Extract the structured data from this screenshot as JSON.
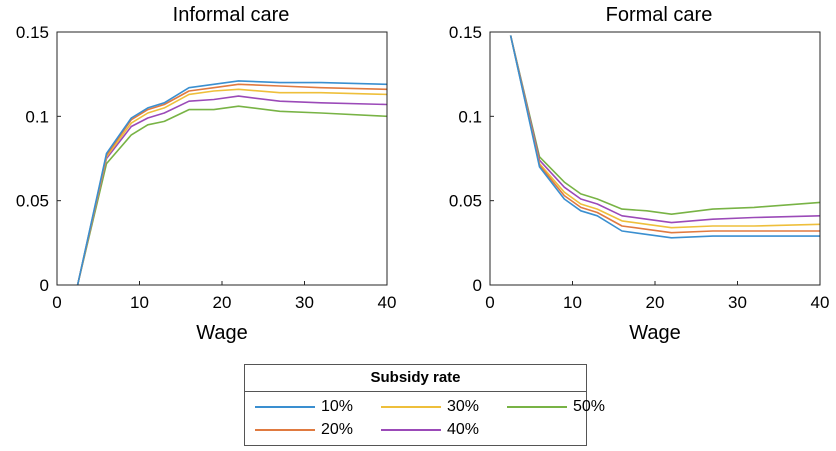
{
  "chart_data": [
    {
      "type": "line",
      "title": "Informal care",
      "xlabel": "Wage",
      "ylabel": "",
      "xlim": [
        0,
        40
      ],
      "ylim": [
        0,
        0.15
      ],
      "xticks": [
        "0",
        "10",
        "20",
        "30",
        "40"
      ],
      "yticks": [
        "0",
        "0.05",
        "0.1",
        "0.15"
      ],
      "x": [
        2.5,
        6,
        9,
        11,
        13,
        16,
        19,
        22,
        27,
        32,
        40
      ],
      "series": [
        {
          "name": "10%",
          "color": "#3a8fd0",
          "values": [
            0,
            0.078,
            0.099,
            0.105,
            0.108,
            0.117,
            0.119,
            0.121,
            0.12,
            0.12,
            0.119
          ]
        },
        {
          "name": "20%",
          "color": "#e07a40",
          "values": [
            0,
            0.077,
            0.098,
            0.104,
            0.107,
            0.115,
            0.117,
            0.119,
            0.118,
            0.117,
            0.116
          ]
        },
        {
          "name": "30%",
          "color": "#eebf3b",
          "values": [
            0,
            0.076,
            0.096,
            0.102,
            0.105,
            0.113,
            0.115,
            0.116,
            0.114,
            0.114,
            0.113
          ]
        },
        {
          "name": "40%",
          "color": "#9b4ab8",
          "values": [
            0,
            0.075,
            0.094,
            0.099,
            0.102,
            0.109,
            0.11,
            0.112,
            0.109,
            0.108,
            0.107
          ]
        },
        {
          "name": "50%",
          "color": "#78b345",
          "values": [
            0,
            0.072,
            0.089,
            0.095,
            0.097,
            0.104,
            0.104,
            0.106,
            0.103,
            0.102,
            0.1
          ]
        }
      ]
    },
    {
      "type": "line",
      "title": "Formal care",
      "xlabel": "Wage",
      "ylabel": "",
      "xlim": [
        0,
        40
      ],
      "ylim": [
        0,
        0.15
      ],
      "xticks": [
        "0",
        "10",
        "20",
        "30",
        "40"
      ],
      "yticks": [
        "0",
        "0.05",
        "0.1",
        "0.15"
      ],
      "x": [
        2.5,
        6,
        9,
        11,
        13,
        16,
        19,
        22,
        27,
        32,
        40
      ],
      "series": [
        {
          "name": "10%",
          "color": "#3a8fd0",
          "values": [
            0.148,
            0.07,
            0.051,
            0.044,
            0.041,
            0.032,
            0.03,
            0.028,
            0.029,
            0.029,
            0.029
          ]
        },
        {
          "name": "20%",
          "color": "#e07a40",
          "values": [
            0.148,
            0.071,
            0.053,
            0.046,
            0.043,
            0.035,
            0.033,
            0.031,
            0.032,
            0.032,
            0.032
          ]
        },
        {
          "name": "30%",
          "color": "#eebf3b",
          "values": [
            0.148,
            0.072,
            0.055,
            0.048,
            0.045,
            0.038,
            0.036,
            0.034,
            0.035,
            0.035,
            0.036
          ]
        },
        {
          "name": "40%",
          "color": "#9b4ab8",
          "values": [
            0.148,
            0.074,
            0.058,
            0.051,
            0.048,
            0.041,
            0.039,
            0.037,
            0.039,
            0.04,
            0.041
          ]
        },
        {
          "name": "50%",
          "color": "#78b345",
          "values": [
            0.148,
            0.076,
            0.061,
            0.054,
            0.051,
            0.045,
            0.044,
            0.042,
            0.045,
            0.046,
            0.049
          ]
        }
      ]
    }
  ],
  "legend": {
    "title": "Subsidy rate",
    "placement": "bottom-center",
    "items": [
      {
        "label": "10%",
        "color": "#3a8fd0"
      },
      {
        "label": "20%",
        "color": "#e07a40"
      },
      {
        "label": "30%",
        "color": "#eebf3b"
      },
      {
        "label": "40%",
        "color": "#9b4ab8"
      },
      {
        "label": "50%",
        "color": "#78b345"
      }
    ]
  }
}
